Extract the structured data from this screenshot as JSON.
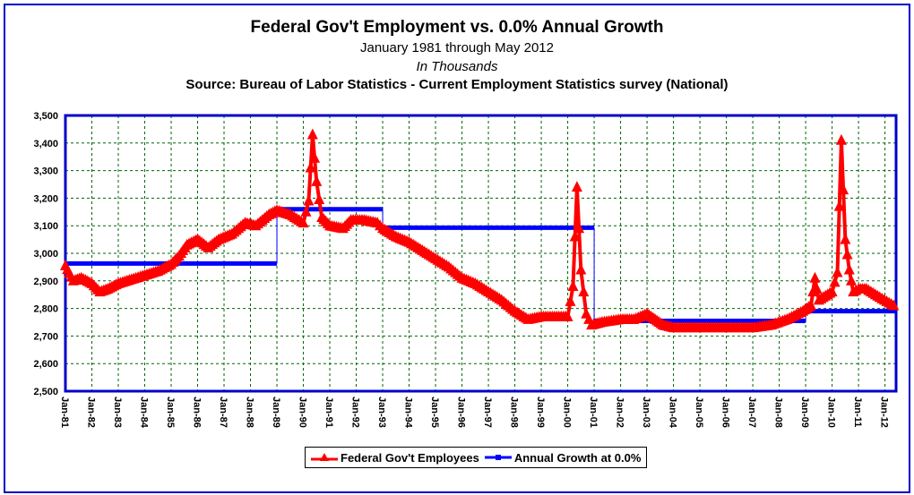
{
  "chart_data": {
    "type": "line",
    "title": "Federal Gov't Employment vs. 0.0% Annual Growth",
    "subtitles": [
      "January 1981 through May 2012",
      "In Thousands",
      "Source: Bureau of Labor Statistics - Current Employment Statistics survey (National)"
    ],
    "xlabel": "",
    "ylabel": "",
    "ylim": [
      2500,
      3500
    ],
    "xlim": [
      1981.0,
      2012.42
    ],
    "y_ticks": [
      "2,500",
      "2,600",
      "2,700",
      "2,800",
      "2,900",
      "3,000",
      "3,100",
      "3,200",
      "3,300",
      "3,400",
      "3,500"
    ],
    "y_tick_values": [
      2500,
      2600,
      2700,
      2800,
      2900,
      3000,
      3100,
      3200,
      3300,
      3400,
      3500
    ],
    "x_ticks": [
      "Jan-81",
      "Jan-82",
      "Jan-83",
      "Jan-84",
      "Jan-85",
      "Jan-86",
      "Jan-87",
      "Jan-88",
      "Jan-89",
      "Jan-90",
      "Jan-91",
      "Jan-92",
      "Jan-93",
      "Jan-94",
      "Jan-95",
      "Jan-96",
      "Jan-97",
      "Jan-98",
      "Jan-99",
      "Jan-00",
      "Jan-01",
      "Jan-02",
      "Jan-03",
      "Jan-04",
      "Jan-05",
      "Jan-06",
      "Jan-07",
      "Jan-08",
      "Jan-09",
      "Jan-10",
      "Jan-11",
      "Jan-12"
    ],
    "grid": true,
    "legend_position": "bottom",
    "series": [
      {
        "name": "Federal Gov't Employees",
        "color": "#ff0000",
        "marker": "triangle",
        "x": [
          1981.0,
          1981.3,
          1981.6,
          1982.0,
          1982.3,
          1982.6,
          1983.0,
          1983.5,
          1984.0,
          1984.5,
          1985.0,
          1985.3,
          1985.6,
          1986.0,
          1986.4,
          1986.8,
          1987.3,
          1987.8,
          1988.2,
          1988.7,
          1989.0,
          1989.5,
          1990.0,
          1990.2,
          1990.35,
          1990.5,
          1990.7,
          1991.0,
          1991.5,
          1991.8,
          1992.3,
          1992.8,
          1993.0,
          1993.5,
          1994.0,
          1994.5,
          1995.0,
          1995.5,
          1996.0,
          1996.5,
          1997.0,
          1997.5,
          1998.0,
          1998.5,
          1999.0,
          1999.5,
          2000.0,
          2000.2,
          2000.35,
          2000.5,
          2000.7,
          2000.9,
          2001.3,
          2002.0,
          2002.5,
          2003.0,
          2003.3,
          2003.6,
          2004.0,
          2005.0,
          2006.0,
          2007.0,
          2007.7,
          2008.3,
          2008.9,
          2009.2,
          2009.35,
          2009.5,
          2010.0,
          2010.2,
          2010.35,
          2010.5,
          2010.65,
          2010.8,
          2011.0,
          2011.3,
          2011.8,
          2012.33
        ],
        "y": [
          2955,
          2900,
          2910,
          2890,
          2860,
          2870,
          2890,
          2905,
          2920,
          2935,
          2960,
          2990,
          3030,
          3050,
          3020,
          3050,
          3070,
          3110,
          3100,
          3140,
          3155,
          3140,
          3110,
          3190,
          3430,
          3260,
          3130,
          3100,
          3090,
          3120,
          3120,
          3110,
          3090,
          3060,
          3040,
          3010,
          2980,
          2950,
          2910,
          2890,
          2860,
          2830,
          2790,
          2760,
          2770,
          2770,
          2770,
          2880,
          3240,
          2940,
          2780,
          2740,
          2750,
          2760,
          2760,
          2780,
          2760,
          2740,
          2730,
          2730,
          2730,
          2730,
          2740,
          2760,
          2790,
          2810,
          2910,
          2830,
          2860,
          2930,
          3410,
          3050,
          2940,
          2860,
          2870,
          2870,
          2840,
          2810
        ]
      },
      {
        "name": "Annual Growth at 0.0%",
        "color": "#0000ff",
        "marker": "square",
        "segments": [
          {
            "x": [
              1981.0,
              1989.0
            ],
            "y": 2963
          },
          {
            "x": [
              1989.0,
              1993.0
            ],
            "y": 3160
          },
          {
            "x": [
              1993.0,
              2001.0
            ],
            "y": 3093
          },
          {
            "x": [
              2001.0,
              2009.0
            ],
            "y": 2755
          },
          {
            "x": [
              2009.0,
              2012.42
            ],
            "y": 2790
          }
        ]
      }
    ]
  }
}
